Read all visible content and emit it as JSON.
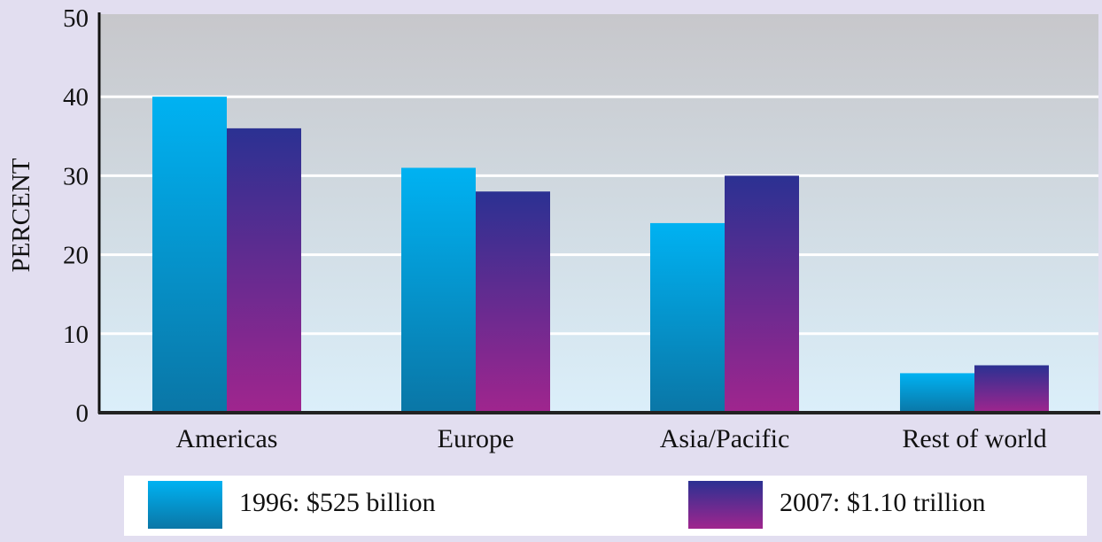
{
  "chart_data": {
    "type": "bar",
    "title": "",
    "xlabel": "",
    "ylabel": "PERCENT",
    "ylim": [
      0,
      50
    ],
    "yticks": [
      0,
      10,
      20,
      30,
      40,
      50
    ],
    "grid": true,
    "legend_position": "bottom",
    "categories": [
      "Americas",
      "Europe",
      "Asia/Pacific",
      "Rest of world"
    ],
    "series": [
      {
        "name": "1996: $525 billion",
        "values": [
          40,
          31,
          24,
          5
        ],
        "color_top": "#00b2f2",
        "color_bottom": "#0a76a6"
      },
      {
        "name": "2007: $1.10 trillion",
        "values": [
          36,
          28,
          30,
          6
        ],
        "color_top": "#2b3192",
        "color_bottom": "#a0258e"
      }
    ]
  }
}
